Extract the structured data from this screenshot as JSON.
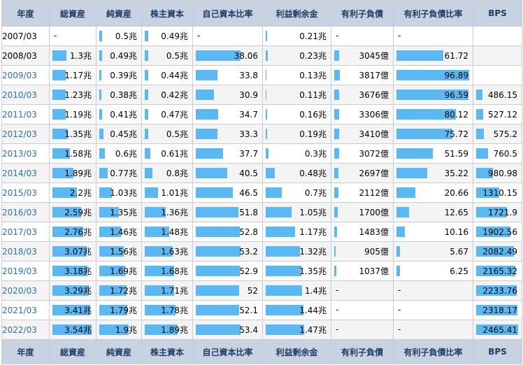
{
  "columns": [
    "年度",
    "総資産",
    "純資産",
    "株主資本",
    "自己資本比率",
    "利益剰余金",
    "有利子負債",
    "有利子負債比率",
    "BPS"
  ],
  "column_keys": [
    "year",
    "total_assets",
    "net_assets",
    "equity",
    "equity_ratio",
    "retained",
    "debt",
    "debt_ratio",
    "bps"
  ],
  "column_names": [
    "year-header",
    "total-assets-header",
    "net-assets-header",
    "shareholders-equity-header",
    "equity-ratio-header",
    "retained-earnings-header",
    "interest-bearing-debt-header",
    "debt-ratio-header",
    "bps-header"
  ],
  "column_widths": [
    68,
    67,
    65,
    73,
    100,
    98,
    89,
    114,
    70
  ],
  "bar_color": "#5bb8f2",
  "rows": [
    {
      "year": "2007/03",
      "year_linked": false,
      "total_assets": {
        "text": "-"
      },
      "net_assets": {
        "text": "0.5兆",
        "bar": 0.08
      },
      "equity": {
        "text": "0.49兆",
        "bar": 0.08
      },
      "equity_ratio": {
        "text": "-"
      },
      "retained": {
        "text": "0.21兆",
        "bar": 0.02
      },
      "debt": {
        "text": "-"
      },
      "debt_ratio": {
        "text": "-"
      },
      "bps": {
        "text": ""
      }
    },
    {
      "year": "2008/03",
      "year_linked": false,
      "total_assets": {
        "text": "1.3兆",
        "bar": 0.35
      },
      "net_assets": {
        "text": "0.49兆",
        "bar": 0.08
      },
      "equity": {
        "text": "0.5兆",
        "bar": 0.08
      },
      "equity_ratio": {
        "text": "38.06",
        "bar": 0.71
      },
      "retained": {
        "text": "0.23兆",
        "bar": 0.03
      },
      "debt": {
        "text": "3045億",
        "bar": 0.09
      },
      "debt_ratio": {
        "text": "61.72",
        "bar": 0.64
      },
      "bps": {
        "text": ""
      }
    },
    {
      "year": "2009/03",
      "year_linked": true,
      "total_assets": {
        "text": "1.17兆",
        "bar": 0.33
      },
      "net_assets": {
        "text": "0.39兆",
        "bar": 0.06
      },
      "equity": {
        "text": "0.44兆",
        "bar": 0.08
      },
      "equity_ratio": {
        "text": "33.8",
        "bar": 0.34
      },
      "retained": {
        "text": "0.13兆",
        "bar": 0.01
      },
      "debt": {
        "text": "3817億",
        "bar": 0.1
      },
      "debt_ratio": {
        "text": "96.89",
        "bar": 1.0
      },
      "bps": {
        "text": ""
      }
    },
    {
      "year": "2010/03",
      "year_linked": true,
      "total_assets": {
        "text": "1.23兆",
        "bar": 0.34
      },
      "net_assets": {
        "text": "0.38兆",
        "bar": 0.06
      },
      "equity": {
        "text": "0.42兆",
        "bar": 0.08
      },
      "equity_ratio": {
        "text": "30.9",
        "bar": 0.29
      },
      "retained": {
        "text": "0.11兆",
        "bar": 0.01
      },
      "debt": {
        "text": "3676億",
        "bar": 0.09
      },
      "debt_ratio": {
        "text": "96.59",
        "bar": 0.99
      },
      "bps": {
        "text": "486.15",
        "bar": 0.15
      }
    },
    {
      "year": "2011/03",
      "year_linked": true,
      "total_assets": {
        "text": "1.19兆",
        "bar": 0.34
      },
      "net_assets": {
        "text": "0.41兆",
        "bar": 0.08
      },
      "equity": {
        "text": "0.47兆",
        "bar": 0.08
      },
      "equity_ratio": {
        "text": "34.7",
        "bar": 0.36
      },
      "retained": {
        "text": "0.16兆",
        "bar": 0.02
      },
      "debt": {
        "text": "3306億",
        "bar": 0.09
      },
      "debt_ratio": {
        "text": "80.12",
        "bar": 0.82
      },
      "bps": {
        "text": "527.12",
        "bar": 0.16
      }
    },
    {
      "year": "2012/03",
      "year_linked": true,
      "total_assets": {
        "text": "1.35兆",
        "bar": 0.38
      },
      "net_assets": {
        "text": "0.45兆",
        "bar": 0.1
      },
      "equity": {
        "text": "0.5兆",
        "bar": 0.08
      },
      "equity_ratio": {
        "text": "33.3",
        "bar": 0.34
      },
      "retained": {
        "text": "0.19兆",
        "bar": 0.02
      },
      "debt": {
        "text": "3410億",
        "bar": 0.09
      },
      "debt_ratio": {
        "text": "75.72",
        "bar": 0.77
      },
      "bps": {
        "text": "575.2",
        "bar": 0.19
      }
    },
    {
      "year": "2013/03",
      "year_linked": true,
      "total_assets": {
        "text": "1.58兆",
        "bar": 0.44
      },
      "net_assets": {
        "text": "0.6兆",
        "bar": 0.15
      },
      "equity": {
        "text": "0.61兆",
        "bar": 0.12
      },
      "equity_ratio": {
        "text": "37.7",
        "bar": 0.43
      },
      "retained": {
        "text": "0.3兆",
        "bar": 0.04
      },
      "debt": {
        "text": "3072億",
        "bar": 0.09
      },
      "debt_ratio": {
        "text": "51.59",
        "bar": 0.5
      },
      "bps": {
        "text": "760.5",
        "bar": 0.28
      }
    },
    {
      "year": "2014/03",
      "year_linked": true,
      "total_assets": {
        "text": "1.89兆",
        "bar": 0.53
      },
      "net_assets": {
        "text": "0.77兆",
        "bar": 0.21
      },
      "equity": {
        "text": "0.8兆",
        "bar": 0.17
      },
      "equity_ratio": {
        "text": "40.5",
        "bar": 0.5
      },
      "retained": {
        "text": "0.48兆",
        "bar": 0.15
      },
      "debt": {
        "text": "2697億",
        "bar": 0.08
      },
      "debt_ratio": {
        "text": "35.22",
        "bar": 0.42
      },
      "bps": {
        "text": "980.98",
        "bar": 0.4
      }
    },
    {
      "year": "2015/03",
      "year_linked": true,
      "total_assets": {
        "text": "2.2兆",
        "bar": 0.62
      },
      "net_assets": {
        "text": "1.03兆",
        "bar": 0.33
      },
      "equity": {
        "text": "1.01兆",
        "bar": 0.3
      },
      "equity_ratio": {
        "text": "46.5",
        "bar": 0.59
      },
      "retained": {
        "text": "0.7兆",
        "bar": 0.26
      },
      "debt": {
        "text": "2112億",
        "bar": 0.07
      },
      "debt_ratio": {
        "text": "20.66",
        "bar": 0.26
      },
      "bps": {
        "text": "1310.15",
        "bar": 0.55
      }
    },
    {
      "year": "2016/03",
      "year_linked": true,
      "total_assets": {
        "text": "2.59兆",
        "bar": 0.72
      },
      "net_assets": {
        "text": "1.35兆",
        "bar": 0.5
      },
      "equity": {
        "text": "1.36兆",
        "bar": 0.48
      },
      "equity_ratio": {
        "text": "51.8",
        "bar": 0.68
      },
      "retained": {
        "text": "1.05兆",
        "bar": 0.42
      },
      "debt": {
        "text": "1700億",
        "bar": 0.06
      },
      "debt_ratio": {
        "text": "12.65",
        "bar": 0.17
      },
      "bps": {
        "text": "1721.9",
        "bar": 0.73
      }
    },
    {
      "year": "2017/03",
      "year_linked": true,
      "total_assets": {
        "text": "2.76兆",
        "bar": 0.78
      },
      "net_assets": {
        "text": "1.46兆",
        "bar": 0.56
      },
      "equity": {
        "text": "1.48兆",
        "bar": 0.55
      },
      "equity_ratio": {
        "text": "52.8",
        "bar": 0.7
      },
      "retained": {
        "text": "1.17兆",
        "bar": 0.48
      },
      "debt": {
        "text": "1483億",
        "bar": 0.05
      },
      "debt_ratio": {
        "text": "10.16",
        "bar": 0.12
      },
      "bps": {
        "text": "1902.56",
        "bar": 0.82
      }
    },
    {
      "year": "2018/03",
      "year_linked": true,
      "total_assets": {
        "text": "3.07兆",
        "bar": 0.86
      },
      "net_assets": {
        "text": "1.56兆",
        "bar": 0.63
      },
      "equity": {
        "text": "1.63兆",
        "bar": 0.64
      },
      "equity_ratio": {
        "text": "53.2",
        "bar": 0.71
      },
      "retained": {
        "text": "1.32兆",
        "bar": 0.56
      },
      "debt": {
        "text": "905億",
        "bar": 0.03
      },
      "debt_ratio": {
        "text": "5.67",
        "bar": 0.05
      },
      "bps": {
        "text": "2082.49",
        "bar": 0.9
      }
    },
    {
      "year": "2019/03",
      "year_linked": true,
      "total_assets": {
        "text": "3.18兆",
        "bar": 0.88
      },
      "net_assets": {
        "text": "1.69兆",
        "bar": 0.68
      },
      "equity": {
        "text": "1.68兆",
        "bar": 0.66
      },
      "equity_ratio": {
        "text": "52.9",
        "bar": 0.7
      },
      "retained": {
        "text": "1.35兆",
        "bar": 0.58
      },
      "debt": {
        "text": "1037億",
        "bar": 0.04
      },
      "debt_ratio": {
        "text": "6.25",
        "bar": 0.05
      },
      "bps": {
        "text": "2165.32",
        "bar": 0.94
      }
    },
    {
      "year": "2020/03",
      "year_linked": true,
      "total_assets": {
        "text": "3.29兆",
        "bar": 0.92
      },
      "net_assets": {
        "text": "1.72兆",
        "bar": 0.7
      },
      "equity": {
        "text": "1.71兆",
        "bar": 0.67
      },
      "equity_ratio": {
        "text": "52",
        "bar": 0.69
      },
      "retained": {
        "text": "1.4兆",
        "bar": 0.59
      },
      "debt": {
        "text": "-"
      },
      "debt_ratio": {
        "text": "-"
      },
      "bps": {
        "text": "2233.76",
        "bar": 0.96
      }
    },
    {
      "year": "2021/03",
      "year_linked": true,
      "total_assets": {
        "text": "3.41兆",
        "bar": 0.95
      },
      "net_assets": {
        "text": "1.79兆",
        "bar": 0.73
      },
      "equity": {
        "text": "1.78兆",
        "bar": 0.7
      },
      "equity_ratio": {
        "text": "52.1",
        "bar": 0.69
      },
      "retained": {
        "text": "1.44兆",
        "bar": 0.61
      },
      "debt": {
        "text": "-"
      },
      "debt_ratio": {
        "text": "-"
      },
      "bps": {
        "text": "2318.17",
        "bar": 0.98
      }
    },
    {
      "year": "2022/03",
      "year_linked": true,
      "total_assets": {
        "text": "3.54兆",
        "bar": 0.99
      },
      "net_assets": {
        "text": "1.9兆",
        "bar": 0.76
      },
      "equity": {
        "text": "1.89兆",
        "bar": 0.74
      },
      "equity_ratio": {
        "text": "53.4",
        "bar": 0.71
      },
      "retained": {
        "text": "1.47兆",
        "bar": 0.63
      },
      "debt": {
        "text": "-"
      },
      "debt_ratio": {
        "text": "-"
      },
      "bps": {
        "text": "2465.41",
        "bar": 1.0
      }
    }
  ]
}
